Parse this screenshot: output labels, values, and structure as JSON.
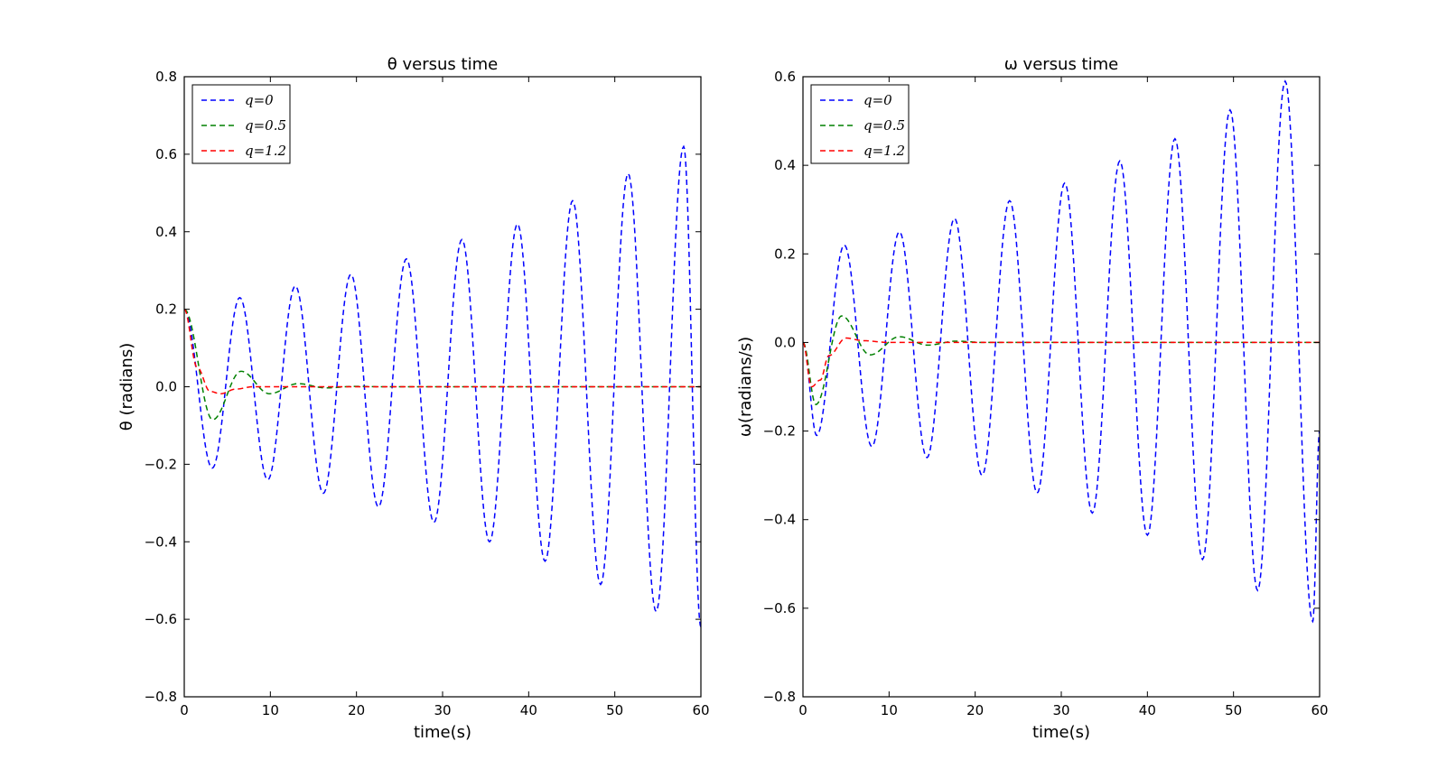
{
  "chart_data": [
    {
      "type": "line",
      "title": "θ versus time",
      "xlabel": "time(s)",
      "ylabel": "θ (radians)",
      "xlim": [
        0,
        60
      ],
      "ylim": [
        -0.8,
        0.8
      ],
      "xticks": [
        0,
        10,
        20,
        30,
        40,
        50,
        60
      ],
      "yticks": [
        -0.8,
        -0.6,
        -0.4,
        -0.2,
        0.0,
        0.2,
        0.4,
        0.6,
        0.8
      ],
      "ytick_labels": [
        "−0.8",
        "−0.6",
        "−0.4",
        "−0.2",
        "0.0",
        "0.2",
        "0.4",
        "0.6",
        "0.8"
      ],
      "grid": false,
      "legend_position": "top-left",
      "series": [
        {
          "name": "q=0",
          "color": "#0000ff",
          "style": "dashed",
          "x": [
            0,
            3.25,
            6.45,
            9.7,
            12.9,
            16.15,
            19.35,
            22.55,
            25.8,
            29.0,
            32.25,
            35.45,
            38.7,
            41.9,
            45.1,
            48.35,
            51.55,
            54.8,
            58.0,
            60
          ],
          "y": [
            0.2,
            -0.21,
            0.23,
            -0.24,
            0.26,
            -0.275,
            0.29,
            -0.31,
            0.33,
            -0.35,
            0.38,
            -0.4,
            0.42,
            -0.45,
            0.48,
            -0.51,
            0.55,
            -0.58,
            0.62,
            -0.62
          ]
        },
        {
          "name": "q=0.5",
          "color": "#008000",
          "style": "dashed",
          "x": [
            0,
            3.3,
            6.6,
            9.9,
            13.2,
            16.5,
            19.8,
            23.1,
            60
          ],
          "y": [
            0.2,
            -0.085,
            0.04,
            -0.018,
            0.008,
            -0.003,
            0.001,
            0.0,
            0.0
          ]
        },
        {
          "name": "q=1.2",
          "color": "#ff0000",
          "style": "dashed",
          "x": [
            0,
            1.5,
            3.0,
            4.2,
            6.0,
            8.0,
            10.0,
            15.0,
            60
          ],
          "y": [
            0.2,
            0.05,
            -0.012,
            -0.018,
            -0.006,
            0.0,
            0.0,
            0.0,
            0.0
          ]
        }
      ]
    },
    {
      "type": "line",
      "title": "ω versus time",
      "xlabel": "time(s)",
      "ylabel": "ω(radians/s)",
      "xlim": [
        0,
        60
      ],
      "ylim": [
        -0.8,
        0.6
      ],
      "xticks": [
        0,
        10,
        20,
        30,
        40,
        50,
        60
      ],
      "yticks": [
        -0.8,
        -0.6,
        -0.4,
        -0.2,
        0.0,
        0.2,
        0.4,
        0.6
      ],
      "ytick_labels": [
        "−0.8",
        "−0.6",
        "−0.4",
        "−0.2",
        "0.0",
        "0.2",
        "0.4",
        "0.6"
      ],
      "grid": false,
      "legend_position": "top-left",
      "series": [
        {
          "name": "q=0",
          "color": "#0000ff",
          "style": "dashed",
          "x": [
            0,
            1.6,
            4.8,
            8.0,
            11.2,
            14.4,
            17.6,
            20.8,
            24.0,
            27.2,
            30.4,
            33.6,
            36.8,
            40.0,
            43.2,
            46.4,
            49.6,
            52.8,
            56.0,
            59.2,
            60
          ],
          "y": [
            0.0,
            -0.21,
            0.22,
            -0.235,
            0.25,
            -0.26,
            0.28,
            -0.3,
            0.32,
            -0.34,
            0.36,
            -0.385,
            0.41,
            -0.435,
            0.46,
            -0.49,
            0.525,
            -0.56,
            0.59,
            -0.63,
            -0.2
          ]
        },
        {
          "name": "q=0.5",
          "color": "#008000",
          "style": "dashed",
          "x": [
            0,
            1.5,
            4.5,
            7.8,
            11.2,
            14.5,
            17.8,
            21.0,
            60
          ],
          "y": [
            0.0,
            -0.14,
            0.06,
            -0.028,
            0.013,
            -0.006,
            0.003,
            0.0,
            0.0
          ]
        },
        {
          "name": "q=1.2",
          "color": "#ff0000",
          "style": "dashed",
          "x": [
            0,
            1.0,
            2.0,
            3.0,
            5.0,
            7.0,
            10.0,
            15.0,
            60
          ],
          "y": [
            0.0,
            -0.1,
            -0.085,
            -0.03,
            0.01,
            0.004,
            0.0,
            0.0,
            0.0
          ]
        }
      ]
    }
  ]
}
